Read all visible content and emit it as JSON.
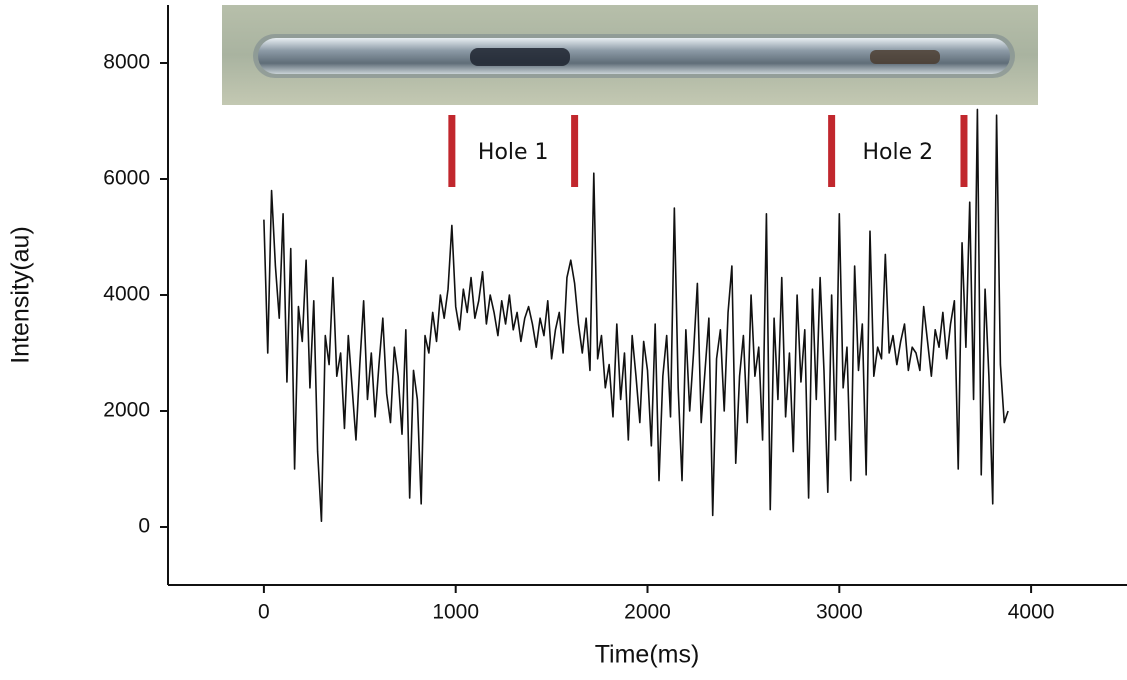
{
  "chart_data": {
    "type": "line",
    "x_label": "Time(ms)",
    "y_label": "Intensity(au)",
    "xlim": [
      -500,
      4500
    ],
    "ylim": [
      -1000,
      9000
    ],
    "xticks": [
      0,
      1000,
      2000,
      3000,
      4000
    ],
    "yticks": [
      0,
      2000,
      4000,
      6000,
      8000
    ],
    "annotations": [
      {
        "text": "Hole 1",
        "x_start": 980,
        "x_end": 1620,
        "color": "#c1272d"
      },
      {
        "text": "Hole 2",
        "x_start": 2960,
        "x_end": 3650,
        "color": "#c1272d"
      }
    ],
    "x": [
      0,
      20,
      40,
      60,
      80,
      100,
      120,
      140,
      160,
      180,
      200,
      220,
      240,
      260,
      280,
      300,
      320,
      340,
      360,
      380,
      400,
      420,
      440,
      460,
      480,
      500,
      520,
      540,
      560,
      580,
      600,
      620,
      640,
      660,
      680,
      700,
      720,
      740,
      760,
      780,
      800,
      820,
      840,
      860,
      880,
      900,
      920,
      940,
      960,
      980,
      1000,
      1020,
      1040,
      1060,
      1080,
      1100,
      1120,
      1140,
      1160,
      1180,
      1200,
      1220,
      1240,
      1260,
      1280,
      1300,
      1320,
      1340,
      1360,
      1380,
      1400,
      1420,
      1440,
      1460,
      1480,
      1500,
      1520,
      1540,
      1560,
      1580,
      1600,
      1620,
      1640,
      1660,
      1680,
      1700,
      1720,
      1740,
      1760,
      1780,
      1800,
      1820,
      1840,
      1860,
      1880,
      1900,
      1920,
      1940,
      1960,
      1980,
      2000,
      2020,
      2040,
      2060,
      2080,
      2100,
      2120,
      2140,
      2160,
      2180,
      2200,
      2220,
      2240,
      2260,
      2280,
      2300,
      2320,
      2340,
      2360,
      2380,
      2400,
      2420,
      2440,
      2460,
      2480,
      2500,
      2520,
      2540,
      2560,
      2580,
      2600,
      2620,
      2640,
      2660,
      2680,
      2700,
      2720,
      2740,
      2760,
      2780,
      2800,
      2820,
      2840,
      2860,
      2880,
      2900,
      2920,
      2940,
      2960,
      2980,
      3000,
      3020,
      3040,
      3060,
      3080,
      3100,
      3120,
      3140,
      3160,
      3180,
      3200,
      3220,
      3240,
      3260,
      3280,
      3300,
      3320,
      3340,
      3360,
      3380,
      3400,
      3420,
      3440,
      3460,
      3480,
      3500,
      3520,
      3540,
      3560,
      3580,
      3600,
      3620,
      3640,
      3660,
      3680,
      3700,
      3720,
      3740,
      3760,
      3780,
      3800,
      3820,
      3840,
      3860,
      3880
    ],
    "series": [
      {
        "color": "#111111",
        "values": [
          5300,
          3000,
          5800,
          4500,
          3600,
          5400,
          2500,
          4800,
          1000,
          3800,
          3200,
          4600,
          2400,
          3900,
          1300,
          100,
          3300,
          2800,
          4300,
          2600,
          3000,
          1700,
          3300,
          2400,
          1500,
          2800,
          3900,
          2200,
          3000,
          1900,
          2800,
          3600,
          2300,
          1800,
          3100,
          2600,
          1600,
          3400,
          500,
          2700,
          2200,
          400,
          3300,
          3000,
          3700,
          3200,
          4000,
          3600,
          4100,
          5200,
          3800,
          3400,
          4100,
          3700,
          4300,
          3600,
          3900,
          4400,
          3500,
          4000,
          3700,
          3300,
          3900,
          3500,
          4000,
          3400,
          3700,
          3200,
          3600,
          3800,
          3500,
          3100,
          3600,
          3300,
          3900,
          2900,
          3400,
          3700,
          3000,
          4300,
          4600,
          4200,
          3500,
          3000,
          3600,
          2700,
          6100,
          2900,
          3300,
          2400,
          2800,
          1900,
          3500,
          2200,
          3000,
          1500,
          3300,
          2600,
          1800,
          3200,
          2700,
          1400,
          3500,
          800,
          2600,
          3300,
          1900,
          5500,
          2400,
          800,
          3400,
          2000,
          3000,
          4200,
          1800,
          2700,
          3600,
          200,
          2900,
          3400,
          2000,
          3700,
          4500,
          1100,
          2600,
          3300,
          1800,
          4000,
          2600,
          3100,
          1500,
          5400,
          300,
          3600,
          2200,
          4300,
          1900,
          3000,
          1300,
          4000,
          2500,
          3400,
          500,
          4100,
          2200,
          4300,
          2700,
          600,
          4000,
          1500,
          5400,
          2400,
          3100,
          800,
          4500,
          2700,
          3500,
          900,
          5100,
          2600,
          3100,
          2900,
          4700,
          3000,
          3300,
          2800,
          3200,
          3500,
          2700,
          3100,
          3000,
          2700,
          3800,
          3200,
          2600,
          3400,
          3100,
          3700,
          2900,
          3500,
          3900,
          1000,
          4900,
          3100,
          5600,
          2200,
          7200,
          900,
          4100,
          2600,
          400,
          7100,
          2800,
          1800,
          2000
        ]
      }
    ]
  }
}
